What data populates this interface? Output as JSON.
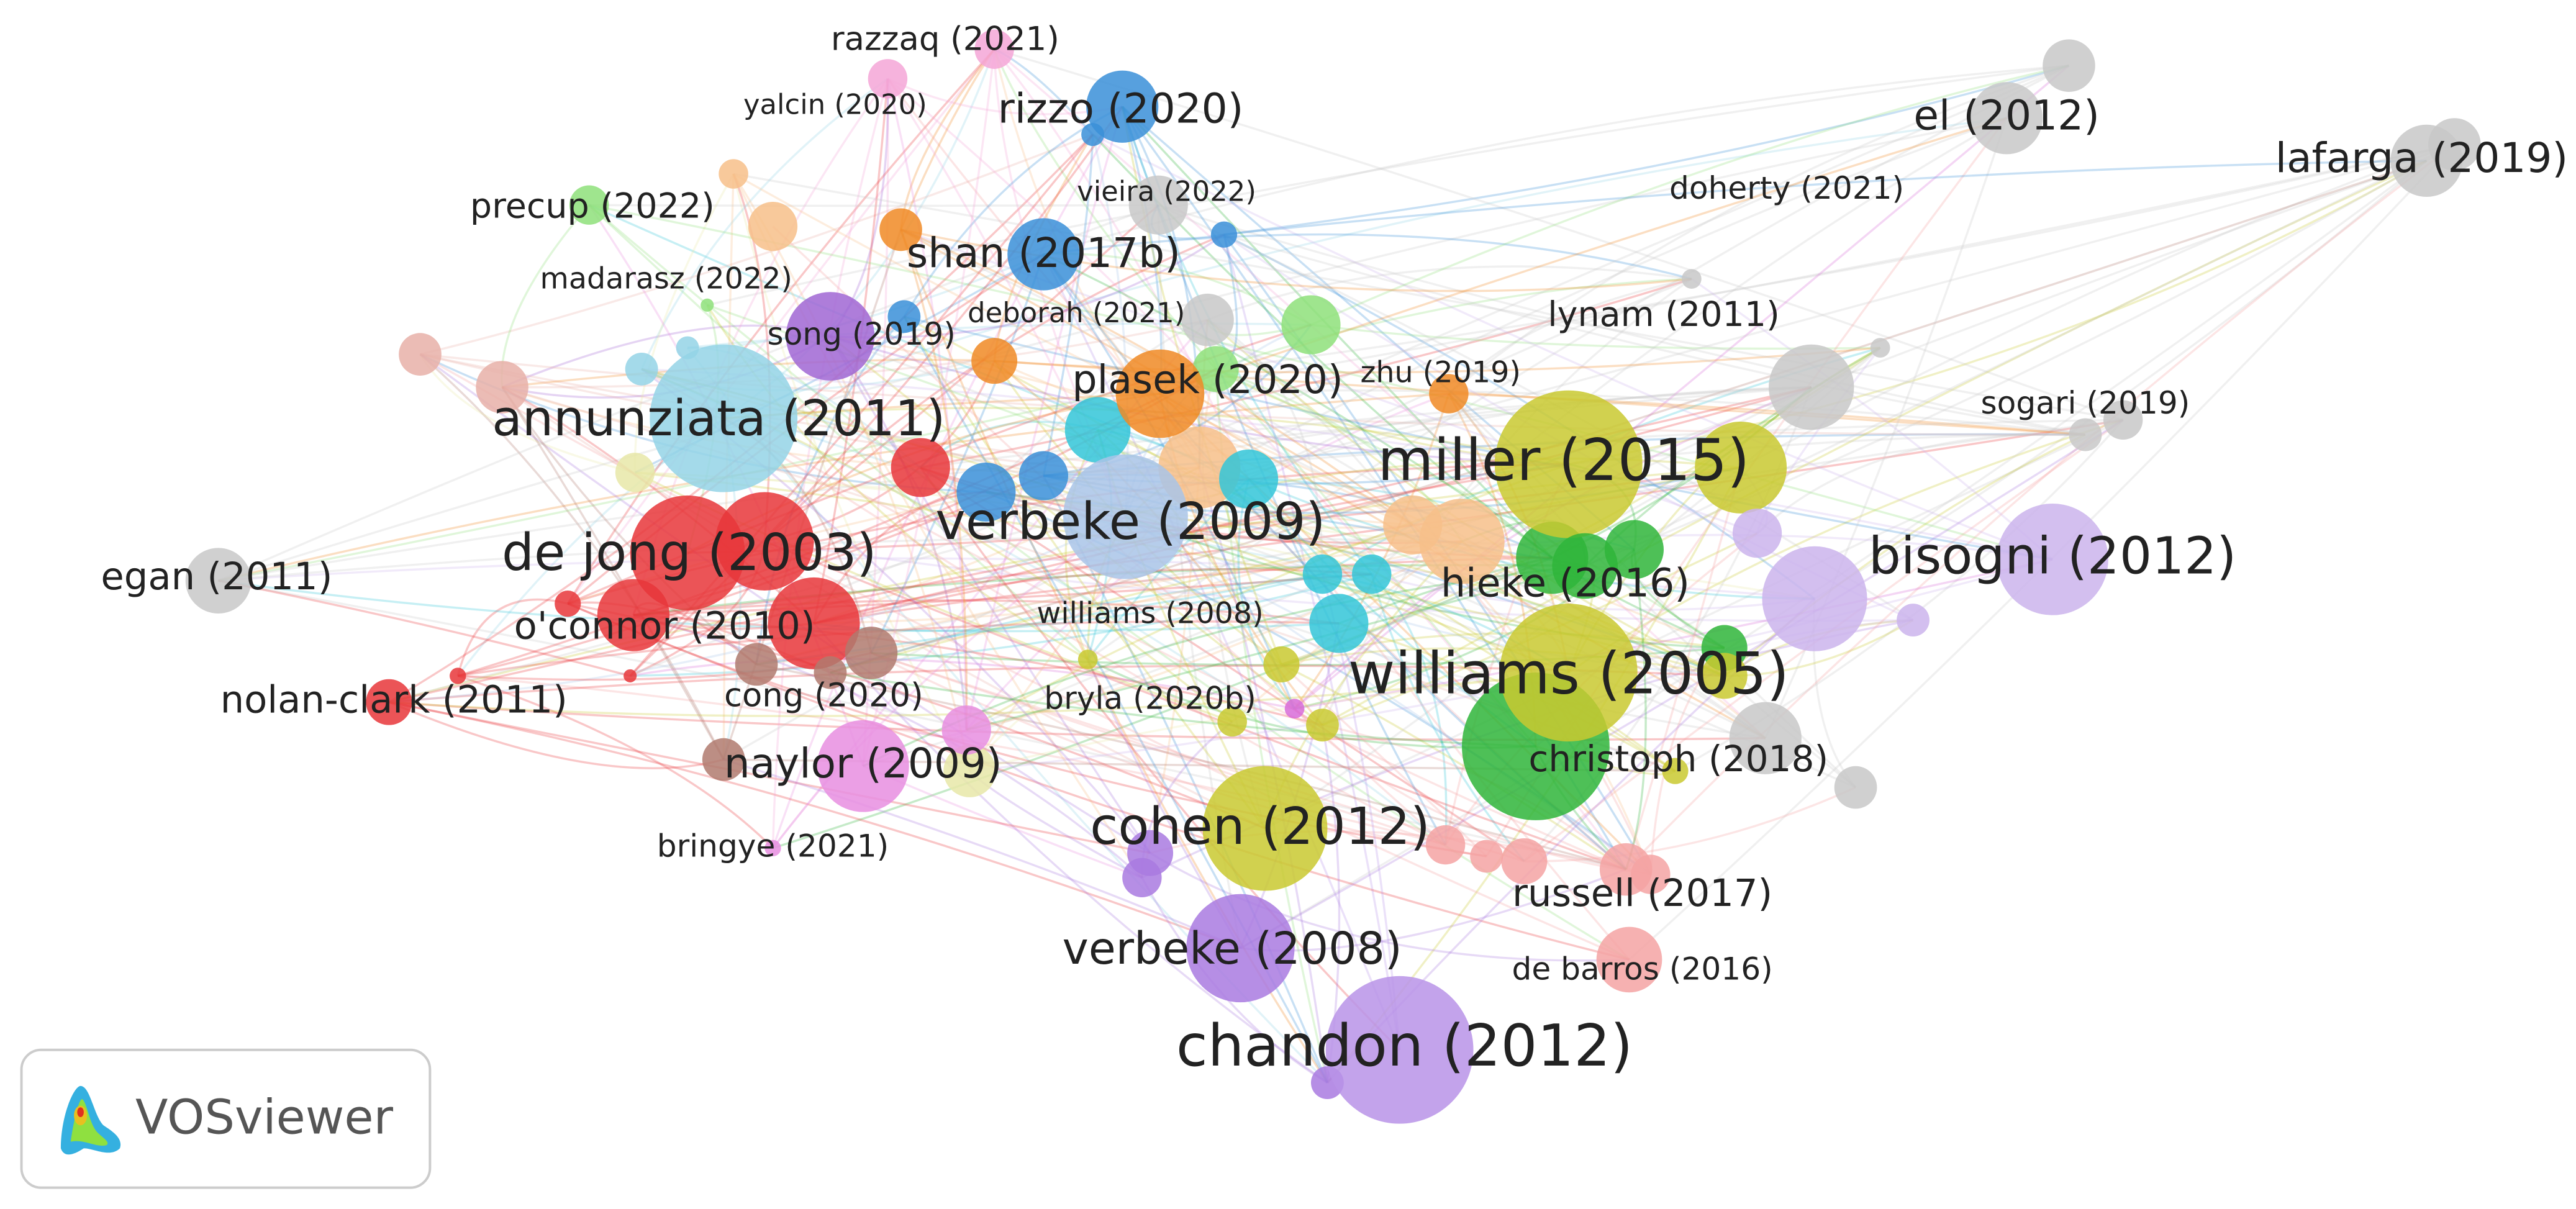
{
  "nodes": [
    {
      "label": "razzaq (2021)",
      "color": "#f4a6d7"
    },
    {
      "label": "yalcin (2020)",
      "color": "#f4a6d7"
    },
    {
      "label": "rizzo (2020)",
      "color": "#3a8fd8"
    },
    {
      "label": "el (2012)",
      "color": "#c8c8c8"
    },
    {
      "label": "lafarga (2019)",
      "color": "#c8c8c8"
    },
    {
      "label": "precup (2022)",
      "color": "#8ee07a"
    },
    {
      "label": "vieira (2022)",
      "color": "#c8c8c8"
    },
    {
      "label": "doherty (2021)",
      "color": "#c8c8c8"
    },
    {
      "label": "shan (2017b)",
      "color": "#3a8fd8"
    },
    {
      "label": "madarasz (2022)",
      "color": "#8ee07a"
    },
    {
      "label": "deborah (2021)",
      "color": "#c8c8c8"
    },
    {
      "label": "lynam (2011)",
      "color": "#c8c8c8"
    },
    {
      "label": "song (2019)",
      "color": "#a066d3"
    },
    {
      "label": "zhu (2019)",
      "color": "#f08a24"
    },
    {
      "label": "plasek (2020)",
      "color": "#f08a24"
    },
    {
      "label": "sogari (2019)",
      "color": "#c8c8c8"
    },
    {
      "label": "annunziata (2011)",
      "color": "#94d4e6"
    },
    {
      "label": "miller (2015)",
      "color": "#c9c930"
    },
    {
      "label": "verbeke (2009)",
      "color": "#a9c4e8"
    },
    {
      "label": "bisogni (2012)",
      "color": "#cbb4ec"
    },
    {
      "label": "de jong (2003)",
      "color": "#e8363a"
    },
    {
      "label": "egan (2011)",
      "color": "#c8c8c8"
    },
    {
      "label": "hieke (2016)",
      "color": "#2fb53a"
    },
    {
      "label": "o'connor (2010)",
      "color": "#e8363a"
    },
    {
      "label": "williams (2008)",
      "color": "#c9c930"
    },
    {
      "label": "williams (2005)",
      "color": "#c9c930"
    },
    {
      "label": "nolan-clark (2011)",
      "color": "#e8363a"
    },
    {
      "label": "cong (2020)",
      "color": "#b07a6e"
    },
    {
      "label": "bryla (2020b)",
      "color": "#d86bd8"
    },
    {
      "label": "christoph (2018)",
      "color": "#c9c930"
    },
    {
      "label": "naylor (2009)",
      "color": "#e88ee0"
    },
    {
      "label": "cohen (2012)",
      "color": "#c9c930"
    },
    {
      "label": "bringye (2021)",
      "color": "#e88ee0"
    },
    {
      "label": "russell (2017)",
      "color": "#f5a3a3"
    },
    {
      "label": "verbeke (2008)",
      "color": "#a97ae0"
    },
    {
      "label": "de barros (2016)",
      "color": "#f5a3a3"
    },
    {
      "label": "chandon (2012)",
      "color": "#b893e8"
    }
  ],
  "logo": {
    "text": "VOSviewer"
  }
}
